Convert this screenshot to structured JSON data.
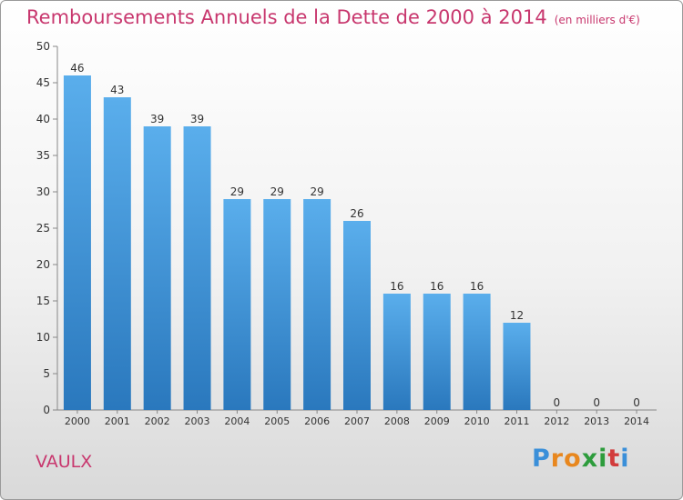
{
  "chart_data": {
    "type": "bar",
    "title": "Remboursements Annuels de la Dette de 2000 à 2014",
    "subtitle": "(en milliers d'€)",
    "categories": [
      "2000",
      "2001",
      "2002",
      "2003",
      "2004",
      "2005",
      "2006",
      "2007",
      "2008",
      "2009",
      "2010",
      "2011",
      "2012",
      "2013",
      "2014"
    ],
    "values": [
      46,
      43,
      39,
      39,
      29,
      29,
      29,
      26,
      16,
      16,
      16,
      12,
      0,
      0,
      0
    ],
    "xlabel": "",
    "ylabel": "",
    "ylim": [
      0,
      50
    ],
    "yticks": [
      0,
      5,
      10,
      15,
      20,
      25,
      30,
      35,
      40,
      45,
      50
    ],
    "grid": false,
    "legend": "none",
    "bar_color": "#3d8fd6"
  },
  "footer": {
    "commune": "VAULX",
    "logo_text": "Proxiti"
  }
}
